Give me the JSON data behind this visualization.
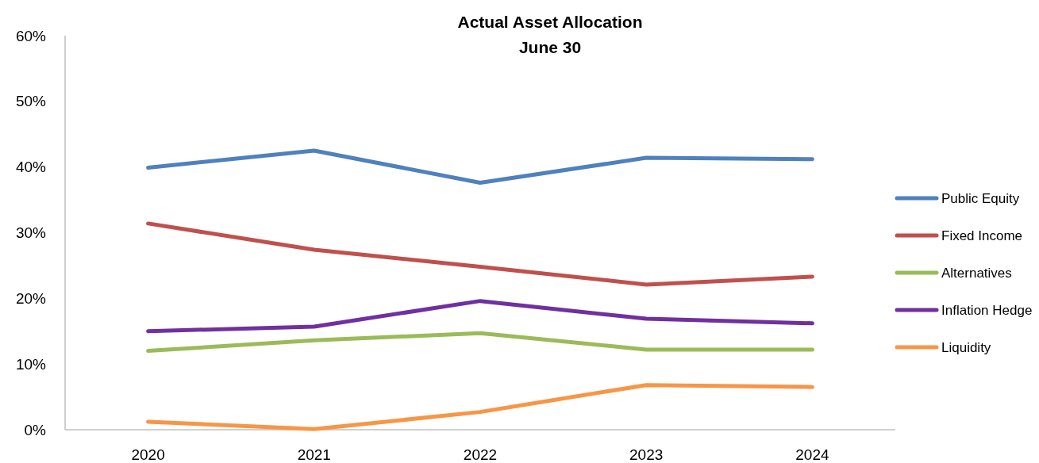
{
  "chart_data": {
    "type": "line",
    "title": "Actual Asset Allocation",
    "subtitle": "June 30",
    "categories": [
      "2020",
      "2021",
      "2022",
      "2023",
      "2024"
    ],
    "ylim": [
      0,
      60
    ],
    "yticks": [
      {
        "value": 0,
        "label": "0%"
      },
      {
        "value": 10,
        "label": "10%"
      },
      {
        "value": 20,
        "label": "20%"
      },
      {
        "value": 30,
        "label": "30%"
      },
      {
        "value": 40,
        "label": "40%"
      },
      {
        "value": 50,
        "label": "50%"
      },
      {
        "value": 60,
        "label": "60%"
      }
    ],
    "grid": false,
    "legend": "right",
    "marker": "none",
    "series": [
      {
        "name": "Public Equity",
        "color": "#4f81bd",
        "values": [
          39.9,
          42.5,
          37.6,
          41.4,
          41.2
        ]
      },
      {
        "name": "Fixed Income",
        "color": "#c0504d",
        "values": [
          31.4,
          27.4,
          24.8,
          22.1,
          23.3
        ]
      },
      {
        "name": "Alternatives",
        "color": "#9bbb59",
        "values": [
          12.0,
          13.6,
          14.7,
          12.2,
          12.2
        ]
      },
      {
        "name": "Inflation Hedge",
        "color": "#7030a0",
        "values": [
          15.0,
          15.7,
          19.6,
          16.9,
          16.2
        ]
      },
      {
        "name": "Liquidity",
        "color": "#f79646",
        "values": [
          1.2,
          0.1,
          2.7,
          6.8,
          6.5
        ]
      }
    ]
  }
}
